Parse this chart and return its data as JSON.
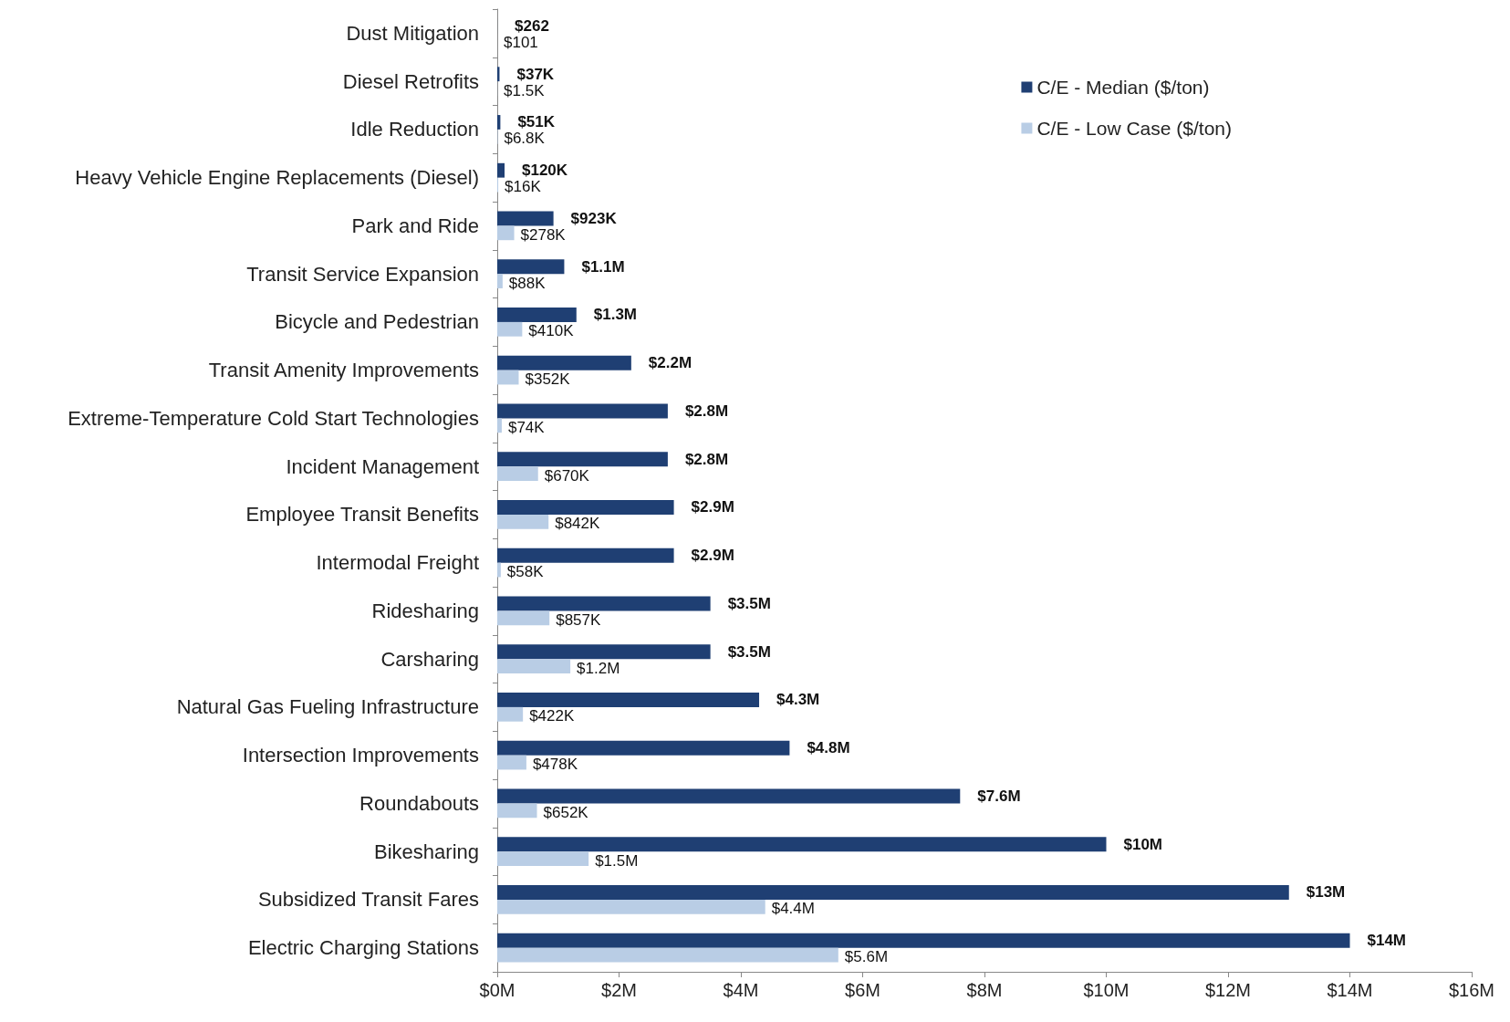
{
  "chart_data": {
    "type": "bar",
    "orientation": "horizontal",
    "categories": [
      "Dust Mitigation",
      "Diesel Retrofits",
      "Idle Reduction",
      "Heavy Vehicle Engine Replacements (Diesel)",
      "Park and Ride",
      "Transit Service Expansion",
      "Bicycle and Pedestrian",
      "Transit Amenity Improvements",
      "Extreme-Temperature Cold Start Technologies",
      "Incident Management",
      "Employee Transit Benefits",
      "Intermodal Freight",
      "Ridesharing",
      "Carsharing",
      "Natural Gas Fueling Infrastructure",
      "Intersection Improvements",
      "Roundabouts",
      "Bikesharing",
      "Subsidized Transit Fares",
      "Electric Charging Stations"
    ],
    "series": [
      {
        "name": "C/E - Median ($/ton)",
        "color": "#1f3f73",
        "values": [
          262,
          37000,
          51000,
          120000,
          923000,
          1100000,
          1300000,
          2200000,
          2800000,
          2800000,
          2900000,
          2900000,
          3500000,
          3500000,
          4300000,
          4800000,
          7600000,
          10000000,
          13000000,
          14000000
        ],
        "value_labels": [
          "$262",
          "$37K",
          "$51K",
          "$120K",
          "$923K",
          "$1.1M",
          "$1.3M",
          "$2.2M",
          "$2.8M",
          "$2.8M",
          "$2.9M",
          "$2.9M",
          "$3.5M",
          "$3.5M",
          "$4.3M",
          "$4.8M",
          "$7.6M",
          "$10M",
          "$13M",
          "$14M"
        ]
      },
      {
        "name": "C/E - Low Case ($/ton)",
        "color": "#b9cde5",
        "values": [
          101,
          1500,
          6800,
          16000,
          278000,
          88000,
          410000,
          352000,
          74000,
          670000,
          842000,
          58000,
          857000,
          1200000,
          422000,
          478000,
          652000,
          1500000,
          4400000,
          5600000
        ],
        "value_labels": [
          "$101",
          "$1.5K",
          "$6.8K",
          "$16K",
          "$278K",
          "$88K",
          "$410K",
          "$352K",
          "$74K",
          "$670K",
          "$842K",
          "$58K",
          "$857K",
          "$1.2M",
          "$422K",
          "$478K",
          "$652K",
          "$1.5M",
          "$4.4M",
          "$5.6M"
        ]
      }
    ],
    "xlim": [
      0,
      16000000
    ],
    "xticks": [
      {
        "value": 0,
        "label": "$0M"
      },
      {
        "value": 2000000,
        "label": "$2M"
      },
      {
        "value": 4000000,
        "label": "$4M"
      },
      {
        "value": 6000000,
        "label": "$6M"
      },
      {
        "value": 8000000,
        "label": "$8M"
      },
      {
        "value": 10000000,
        "label": "$10M"
      },
      {
        "value": 12000000,
        "label": "$12M"
      },
      {
        "value": 14000000,
        "label": "$14M"
      },
      {
        "value": 16000000,
        "label": "$16M"
      }
    ],
    "legend": "top right"
  }
}
